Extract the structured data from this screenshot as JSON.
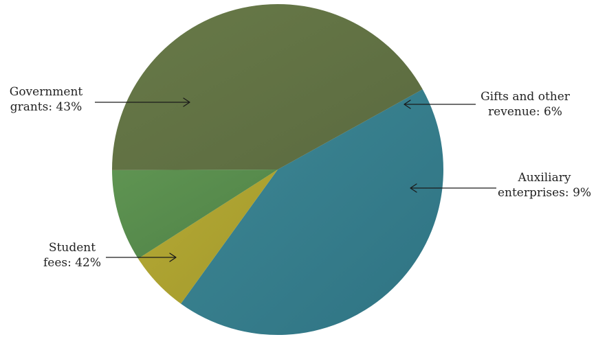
{
  "chart_data": {
    "type": "pie",
    "title": "",
    "unit": "%",
    "slices": [
      {
        "id": "government-grants",
        "label_lines": [
          "Government",
          "grants: 43%"
        ],
        "value": 43,
        "color": "#2f7383",
        "color_light": "#3d8794"
      },
      {
        "id": "gifts-other-revenue",
        "label_lines": [
          "Gifts and other",
          "revenue: 6%"
        ],
        "value": 6,
        "color": "#a39a2c",
        "color_light": "#b5a935"
      },
      {
        "id": "auxiliary-enterprises",
        "label_lines": [
          "Auxiliary",
          "enterprises: 9%"
        ],
        "value": 9,
        "color": "#4f8247",
        "color_light": "#5f9452"
      },
      {
        "id": "student-fees",
        "label_lines": [
          "Student",
          "fees: 42%"
        ],
        "value": 42,
        "color": "#5b6a40",
        "color_light": "#687a48"
      }
    ]
  }
}
